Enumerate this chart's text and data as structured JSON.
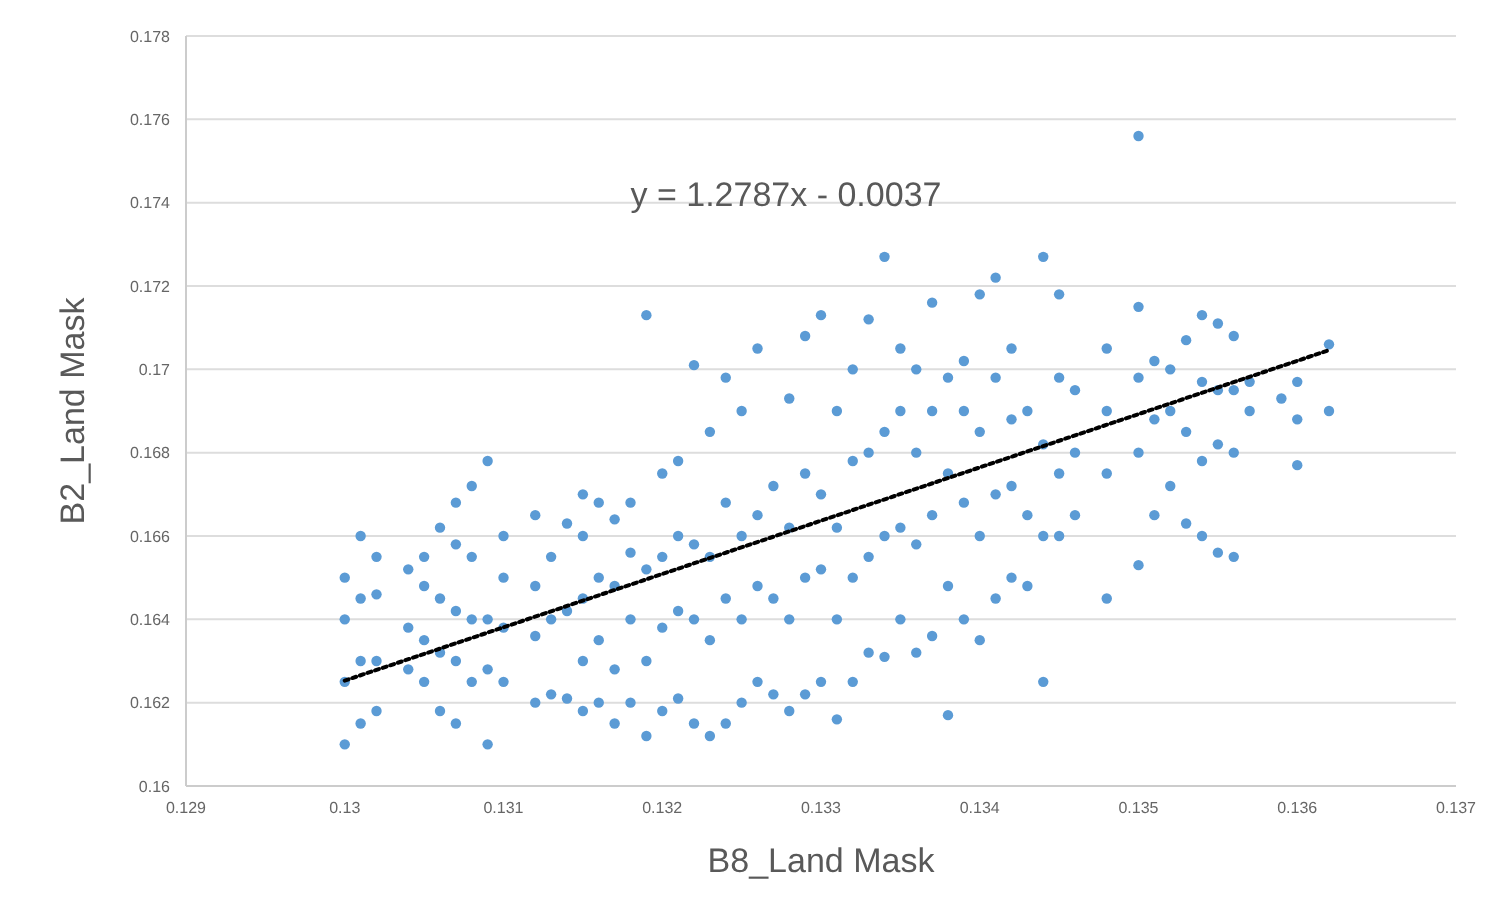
{
  "chart_data": {
    "type": "scatter",
    "xlabel": "B8_Land Mask",
    "ylabel": "B2_Land Mask",
    "annotations": [
      "y = 1.2787x - 0.0037"
    ],
    "xlim": [
      0.129,
      0.137
    ],
    "xticks": [
      0.129,
      0.13,
      0.131,
      0.132,
      0.133,
      0.134,
      0.135,
      0.136,
      0.137
    ],
    "ylim": [
      0.16,
      0.178
    ],
    "yticks": [
      0.16,
      0.162,
      0.164,
      0.166,
      0.168,
      0.17,
      0.172,
      0.174,
      0.176,
      0.178
    ],
    "grid": "y",
    "marker": "circle",
    "series": [
      {
        "color": "#5b9bd5",
        "x": [
          0.13,
          0.13,
          0.13,
          0.13,
          0.1301,
          0.1301,
          0.1301,
          0.1301,
          0.1302,
          0.1302,
          0.1302,
          0.1302,
          0.1304,
          0.1304,
          0.1304,
          0.1305,
          0.1305,
          0.1305,
          0.1305,
          0.1306,
          0.1306,
          0.1306,
          0.1306,
          0.1307,
          0.1307,
          0.1307,
          0.1307,
          0.1307,
          0.1308,
          0.1308,
          0.1308,
          0.1308,
          0.1309,
          0.1309,
          0.1309,
          0.1309,
          0.131,
          0.131,
          0.131,
          0.131,
          0.1312,
          0.1312,
          0.1312,
          0.1312,
          0.1313,
          0.1313,
          0.1313,
          0.1314,
          0.1314,
          0.1314,
          0.1315,
          0.1315,
          0.1315,
          0.1315,
          0.1315,
          0.1316,
          0.1316,
          0.1316,
          0.1316,
          0.1317,
          0.1317,
          0.1317,
          0.1317,
          0.1318,
          0.1318,
          0.1318,
          0.1318,
          0.1319,
          0.1319,
          0.1319,
          0.1319,
          0.132,
          0.132,
          0.132,
          0.132,
          0.1321,
          0.1321,
          0.1321,
          0.1321,
          0.1322,
          0.1322,
          0.1322,
          0.1322,
          0.1323,
          0.1323,
          0.1323,
          0.1323,
          0.1324,
          0.1324,
          0.1324,
          0.1324,
          0.1325,
          0.1325,
          0.1325,
          0.1325,
          0.1326,
          0.1326,
          0.1326,
          0.1326,
          0.1327,
          0.1327,
          0.1327,
          0.1328,
          0.1328,
          0.1328,
          0.1328,
          0.1329,
          0.1329,
          0.1329,
          0.1329,
          0.133,
          0.133,
          0.133,
          0.133,
          0.1331,
          0.1331,
          0.1331,
          0.1331,
          0.1332,
          0.1332,
          0.1332,
          0.1332,
          0.1333,
          0.1333,
          0.1333,
          0.1333,
          0.1334,
          0.1334,
          0.1334,
          0.1334,
          0.1335,
          0.1335,
          0.1335,
          0.1335,
          0.1336,
          0.1336,
          0.1336,
          0.1336,
          0.1337,
          0.1337,
          0.1337,
          0.1337,
          0.1338,
          0.1338,
          0.1338,
          0.1338,
          0.1339,
          0.1339,
          0.1339,
          0.1339,
          0.134,
          0.134,
          0.134,
          0.134,
          0.1341,
          0.1341,
          0.1341,
          0.1341,
          0.1342,
          0.1342,
          0.1342,
          0.1342,
          0.1343,
          0.1343,
          0.1343,
          0.1344,
          0.1344,
          0.1344,
          0.1344,
          0.1345,
          0.1345,
          0.1345,
          0.1345,
          0.1346,
          0.1346,
          0.1346,
          0.1348,
          0.1348,
          0.1348,
          0.1348,
          0.135,
          0.135,
          0.135,
          0.135,
          0.135,
          0.1351,
          0.1351,
          0.1351,
          0.1352,
          0.1352,
          0.1352,
          0.1353,
          0.1353,
          0.1353,
          0.1354,
          0.1354,
          0.1354,
          0.1354,
          0.1355,
          0.1355,
          0.1355,
          0.1355,
          0.1356,
          0.1356,
          0.1356,
          0.1356,
          0.1357,
          0.1357,
          0.1359,
          0.136,
          0.136,
          0.136,
          0.1362,
          0.1362
        ],
        "values": [
          0.161,
          0.1625,
          0.164,
          0.165,
          0.1615,
          0.163,
          0.1645,
          0.166,
          0.1618,
          0.163,
          0.1646,
          0.1655,
          0.1628,
          0.1638,
          0.1652,
          0.1625,
          0.1635,
          0.1648,
          0.1655,
          0.1618,
          0.1632,
          0.1645,
          0.1662,
          0.1615,
          0.163,
          0.1642,
          0.1658,
          0.1668,
          0.1625,
          0.164,
          0.1655,
          0.1672,
          0.161,
          0.1628,
          0.164,
          0.1678,
          0.1625,
          0.1638,
          0.165,
          0.166,
          0.162,
          0.1636,
          0.1648,
          0.1665,
          0.1622,
          0.164,
          0.1655,
          0.1621,
          0.1642,
          0.1663,
          0.1618,
          0.163,
          0.1645,
          0.166,
          0.167,
          0.162,
          0.1635,
          0.165,
          0.1668,
          0.1615,
          0.1628,
          0.1648,
          0.1664,
          0.162,
          0.164,
          0.1656,
          0.1668,
          0.1612,
          0.163,
          0.1652,
          0.1713,
          0.1618,
          0.1638,
          0.1655,
          0.1675,
          0.1621,
          0.1642,
          0.166,
          0.1678,
          0.1615,
          0.164,
          0.1658,
          0.1701,
          0.1612,
          0.1635,
          0.1655,
          0.1685,
          0.1615,
          0.1645,
          0.1668,
          0.1698,
          0.162,
          0.164,
          0.166,
          0.169,
          0.1625,
          0.1648,
          0.1665,
          0.1705,
          0.1622,
          0.1645,
          0.1672,
          0.1618,
          0.164,
          0.1662,
          0.1693,
          0.1622,
          0.165,
          0.1675,
          0.1708,
          0.1625,
          0.1652,
          0.167,
          0.1713,
          0.1616,
          0.164,
          0.1662,
          0.169,
          0.1625,
          0.165,
          0.1678,
          0.17,
          0.1632,
          0.1655,
          0.168,
          0.1712,
          0.1631,
          0.166,
          0.1685,
          0.1727,
          0.164,
          0.1662,
          0.169,
          0.1705,
          0.1632,
          0.1658,
          0.168,
          0.17,
          0.1636,
          0.1665,
          0.169,
          0.1716,
          0.1617,
          0.1648,
          0.1675,
          0.1698,
          0.164,
          0.1668,
          0.169,
          0.1702,
          0.1635,
          0.166,
          0.1685,
          0.1718,
          0.1645,
          0.167,
          0.1698,
          0.1722,
          0.165,
          0.1672,
          0.1688,
          0.1705,
          0.1648,
          0.1665,
          0.169,
          0.1625,
          0.166,
          0.1682,
          0.1727,
          0.166,
          0.1675,
          0.1698,
          0.1718,
          0.1665,
          0.168,
          0.1695,
          0.1645,
          0.1675,
          0.169,
          0.1705,
          0.1653,
          0.168,
          0.1698,
          0.1715,
          0.1756,
          0.1665,
          0.1688,
          0.1702,
          0.1672,
          0.169,
          0.17,
          0.1663,
          0.1685,
          0.1707,
          0.166,
          0.1678,
          0.1697,
          0.1713,
          0.1656,
          0.1682,
          0.1695,
          0.1711,
          0.1655,
          0.168,
          0.1695,
          0.1708,
          0.169,
          0.1697,
          0.1693,
          0.1677,
          0.1688,
          0.1697,
          0.169,
          0.1706
        ]
      },
      {
        "type": "line",
        "color": "#000000",
        "line_style": "dotted",
        "marker": "none",
        "x": [
          0.13,
          0.1362
        ],
        "values": [
          0.16253,
          0.17046
        ]
      }
    ]
  }
}
